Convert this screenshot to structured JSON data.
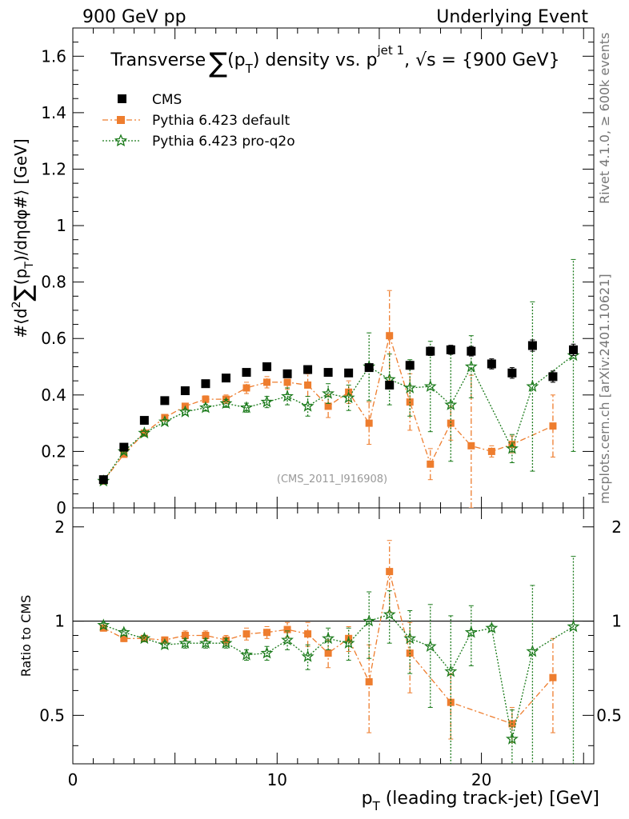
{
  "header": {
    "left": "900 GeV pp",
    "right": "Underlying Event"
  },
  "sidebar": {
    "rivet": "Rivet 4.1.0, ≥ 600k events",
    "mcplots": "mcplots.cern.ch [arXiv:2401.10621]"
  },
  "watermark": "(CMS_2011_I916908)",
  "legend": {
    "cms": "CMS",
    "default": "Pythia 6.423 default",
    "proq2o": "Pythia 6.423 pro-q2o"
  },
  "colors": {
    "cms": "#000000",
    "default": "#ee7d2e",
    "proq2o": "#1a7a1a"
  },
  "chart_data": [
    {
      "type": "scatter",
      "title": "Transverse ∑(pT) density vs. pT^jet 1, √s = {900 GeV}",
      "title_parts": {
        "t1": "Transverse",
        "sum": "∑",
        "t2": "(p",
        "t_sub": "T",
        "t3": ") density vs. p",
        "jet_sup": "jet 1",
        "t4": ", √s = {900 GeV}"
      },
      "xlabel": "pT (leading track-jet) [GeV]",
      "xlabel_parts": {
        "p": "p",
        "sub": "T",
        "rest": " (leading track-jet) [GeV]"
      },
      "ylabel": "#⟨d²∑(pT)/dηdφ#⟩ [GeV]",
      "ylabel_parts": {
        "a": "#⟨d",
        "sq": "2",
        "sum": "∑",
        "b": "(p",
        "sub": "T",
        "c": ")/dηdφ#⟩ [GeV]"
      },
      "xlim": [
        0,
        25.5
      ],
      "ylim": [
        0,
        1.7
      ],
      "yticks": [
        0,
        0.2,
        0.4,
        0.6,
        0.8,
        1,
        1.2,
        1.4,
        1.6
      ],
      "ytick_labels": [
        "0",
        "0.2",
        "0.4",
        "0.6",
        "0.8",
        "1",
        "1.2",
        "1.4",
        "1.6"
      ],
      "series": [
        {
          "name": "CMS",
          "x": [
            1.5,
            2.5,
            3.5,
            4.5,
            5.5,
            6.5,
            7.5,
            8.5,
            9.5,
            10.5,
            11.5,
            12.5,
            13.5,
            14.5,
            15.5,
            16.5,
            17.5,
            18.5,
            19.5,
            20.5,
            21.5,
            22.5,
            23.5,
            24.5
          ],
          "y": [
            0.1,
            0.215,
            0.31,
            0.38,
            0.415,
            0.44,
            0.46,
            0.48,
            0.5,
            0.475,
            0.49,
            0.48,
            0.478,
            0.497,
            0.435,
            0.505,
            0.555,
            0.56,
            0.555,
            0.51,
            0.478,
            0.575,
            0.465,
            0.56
          ],
          "err": [
            0.005,
            0.006,
            0.006,
            0.007,
            0.007,
            0.007,
            0.008,
            0.008,
            0.009,
            0.009,
            0.01,
            0.01,
            0.011,
            0.012,
            0.013,
            0.014,
            0.015,
            0.016,
            0.017,
            0.018,
            0.019,
            0.02,
            0.02,
            0.02
          ]
        },
        {
          "name": "Pythia 6.423 default",
          "x": [
            1.5,
            2.5,
            3.5,
            4.5,
            5.5,
            6.5,
            7.5,
            8.5,
            9.5,
            10.5,
            11.5,
            12.5,
            13.5,
            14.5,
            15.5,
            16.5,
            17.5,
            18.5,
            19.5,
            20.5,
            21.5,
            23.5
          ],
          "y": [
            0.095,
            0.19,
            0.265,
            0.32,
            0.36,
            0.385,
            0.385,
            0.425,
            0.445,
            0.445,
            0.435,
            0.36,
            0.41,
            0.3,
            0.61,
            0.375,
            0.155,
            0.3,
            0.22,
            0.2,
            0.225,
            0.29
          ],
          "err": [
            0.004,
            0.005,
            0.006,
            0.008,
            0.01,
            0.012,
            0.015,
            0.02,
            0.02,
            0.025,
            0.04,
            0.04,
            0.04,
            0.075,
            0.16,
            0.1,
            0.055,
            0.06,
            0.25,
            0.02,
            0.03,
            0.11
          ]
        },
        {
          "name": "Pythia 6.423 pro-q2o",
          "x": [
            1.5,
            2.5,
            3.5,
            4.5,
            5.5,
            6.5,
            7.5,
            8.5,
            9.5,
            10.5,
            11.5,
            12.5,
            13.5,
            14.5,
            15.5,
            16.5,
            17.5,
            18.5,
            19.5,
            21.5,
            22.5,
            24.5
          ],
          "y": [
            0.095,
            0.2,
            0.265,
            0.305,
            0.34,
            0.355,
            0.37,
            0.355,
            0.375,
            0.395,
            0.36,
            0.405,
            0.39,
            0.5,
            0.455,
            0.425,
            0.43,
            0.365,
            0.5,
            0.21,
            0.43,
            0.54
          ],
          "err": [
            0.004,
            0.005,
            0.007,
            0.008,
            0.01,
            0.012,
            0.014,
            0.016,
            0.02,
            0.03,
            0.035,
            0.035,
            0.045,
            0.12,
            0.09,
            0.1,
            0.16,
            0.2,
            0.11,
            0.05,
            0.3,
            0.34
          ]
        }
      ]
    },
    {
      "type": "scatter",
      "title": "Ratio to CMS",
      "ylabel": "Ratio to CMS",
      "xlabel": "pT (leading track-jet) [GeV]",
      "xlim": [
        0,
        25.5
      ],
      "ylim": [
        0.35,
        2.3
      ],
      "yscale": "log",
      "yticks": [
        0.5,
        1,
        2
      ],
      "ytick_labels": [
        "0.5",
        "1",
        "2"
      ],
      "xticks": [
        0,
        10,
        20
      ],
      "xtick_labels": [
        "0",
        "10",
        "20"
      ],
      "reference_line": 1,
      "series": [
        {
          "name": "Pythia 6.423 default",
          "x": [
            1.5,
            2.5,
            3.5,
            4.5,
            5.5,
            6.5,
            7.5,
            8.5,
            9.5,
            10.5,
            11.5,
            12.5,
            13.5,
            14.5,
            15.5,
            16.5,
            18.5,
            21.5,
            23.5
          ],
          "y": [
            0.95,
            0.88,
            0.88,
            0.87,
            0.9,
            0.9,
            0.87,
            0.91,
            0.92,
            0.94,
            0.91,
            0.79,
            0.88,
            0.64,
            1.44,
            0.79,
            0.55,
            0.47,
            0.66
          ],
          "err": [
            0.02,
            0.02,
            0.02,
            0.02,
            0.03,
            0.03,
            0.03,
            0.04,
            0.04,
            0.05,
            0.08,
            0.08,
            0.08,
            0.2,
            0.37,
            0.2,
            0.13,
            0.06,
            0.22
          ]
        },
        {
          "name": "Pythia 6.423 pro-q2o",
          "x": [
            1.5,
            2.5,
            3.5,
            4.5,
            5.5,
            6.5,
            7.5,
            8.5,
            9.5,
            10.5,
            11.5,
            12.5,
            13.5,
            14.5,
            15.5,
            16.5,
            17.5,
            18.5,
            19.5,
            20.5,
            21.5,
            22.5,
            24.5
          ],
          "y": [
            0.97,
            0.92,
            0.88,
            0.84,
            0.85,
            0.85,
            0.85,
            0.78,
            0.79,
            0.87,
            0.77,
            0.88,
            0.85,
            1.0,
            1.05,
            0.88,
            0.83,
            0.69,
            0.92,
            0.95,
            0.42,
            0.8,
            0.96
          ],
          "err": [
            0.02,
            0.02,
            0.02,
            0.02,
            0.03,
            0.03,
            0.03,
            0.03,
            0.04,
            0.06,
            0.07,
            0.07,
            0.1,
            0.24,
            0.2,
            0.2,
            0.3,
            0.35,
            0.2,
            0.02,
            0.1,
            0.5,
            0.65
          ]
        }
      ]
    }
  ]
}
